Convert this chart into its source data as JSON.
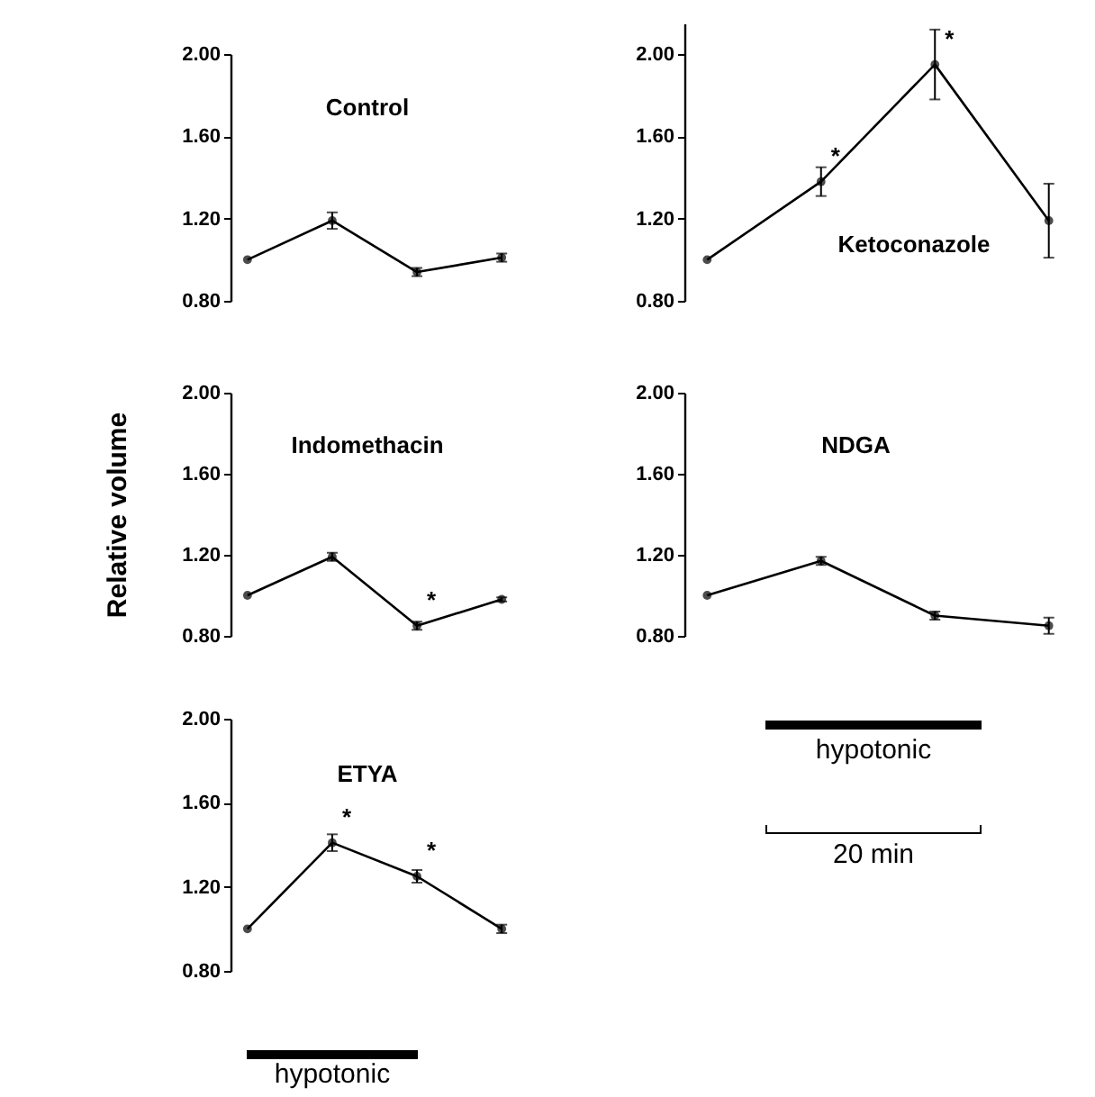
{
  "chart_data": [
    {
      "type": "line",
      "title": "Control",
      "categories": [
        null,
        null,
        null,
        null
      ],
      "values": [
        1.0,
        1.19,
        0.94,
        1.01
      ],
      "errors": [
        null,
        0.04,
        0.02,
        0.02
      ],
      "color": "#000000",
      "marker": "circle",
      "ylim": [
        0.8,
        2.0
      ],
      "yticks": [
        {
          "value": 0.8,
          "label": "0.80"
        },
        {
          "value": 1.2,
          "label": "1.20"
        },
        {
          "value": 1.6,
          "label": "1.60"
        },
        {
          "value": 2.0,
          "label": "2.00"
        }
      ],
      "tick_labels": "y"
    },
    {
      "type": "line",
      "title": "Ketoconazole",
      "categories": [
        null,
        null,
        null,
        null
      ],
      "values": [
        1.0,
        1.38,
        1.95,
        1.19
      ],
      "errors": [
        null,
        0.07,
        0.17,
        0.18
      ],
      "value_labels": [
        null,
        "*",
        "*",
        null
      ],
      "color": "#000000",
      "marker": "circle",
      "ylim": [
        0.8,
        2.15
      ],
      "yticks": [
        {
          "value": 0.8,
          "label": "0.80"
        },
        {
          "value": 1.2,
          "label": "1.20"
        },
        {
          "value": 1.6,
          "label": "1.60"
        },
        {
          "value": 2.0,
          "label": "2.00"
        }
      ],
      "tick_labels": "y"
    },
    {
      "type": "line",
      "title": "Indomethacin",
      "ylabel": "Relative volume",
      "categories": [
        null,
        null,
        null,
        null
      ],
      "values": [
        1.0,
        1.19,
        0.85,
        0.98
      ],
      "errors": [
        null,
        0.02,
        0.02,
        0.01
      ],
      "value_labels": [
        null,
        null,
        "*",
        null
      ],
      "color": "#000000",
      "marker": "circle",
      "ylim": [
        0.8,
        2.0
      ],
      "yticks": [
        {
          "value": 0.8,
          "label": "0.80"
        },
        {
          "value": 1.2,
          "label": "1.20"
        },
        {
          "value": 1.6,
          "label": "1.60"
        },
        {
          "value": 2.0,
          "label": "2.00"
        }
      ],
      "tick_labels": "y"
    },
    {
      "type": "line",
      "title": "NDGA",
      "categories": [
        null,
        null,
        null,
        null
      ],
      "values": [
        1.0,
        1.17,
        0.9,
        0.85
      ],
      "errors": [
        null,
        0.02,
        0.02,
        0.04
      ],
      "color": "#000000",
      "marker": "circle",
      "ylim": [
        0.8,
        2.0
      ],
      "yticks": [
        {
          "value": 0.8,
          "label": "0.80"
        },
        {
          "value": 1.2,
          "label": "1.20"
        },
        {
          "value": 1.6,
          "label": "1.60"
        },
        {
          "value": 2.0,
          "label": "2.00"
        }
      ],
      "tick_labels": "y"
    },
    {
      "type": "line",
      "title": "ETYA",
      "categories": [
        null,
        null,
        null,
        null
      ],
      "values": [
        1.0,
        1.41,
        1.25,
        1.0
      ],
      "errors": [
        null,
        0.04,
        0.03,
        0.02
      ],
      "value_labels": [
        null,
        "*",
        "*",
        null
      ],
      "color": "#000000",
      "marker": "circle",
      "ylim": [
        0.8,
        2.0
      ],
      "yticks": [
        {
          "value": 0.8,
          "label": "0.80"
        },
        {
          "value": 1.2,
          "label": "1.20"
        },
        {
          "value": 1.6,
          "label": "1.60"
        },
        {
          "value": 2.0,
          "label": "2.00"
        }
      ],
      "tick_labels": "y",
      "annotations": [
        "hypotonic"
      ]
    },
    {
      "type": "other",
      "annotations": [
        "hypotonic",
        "20 min"
      ]
    }
  ]
}
